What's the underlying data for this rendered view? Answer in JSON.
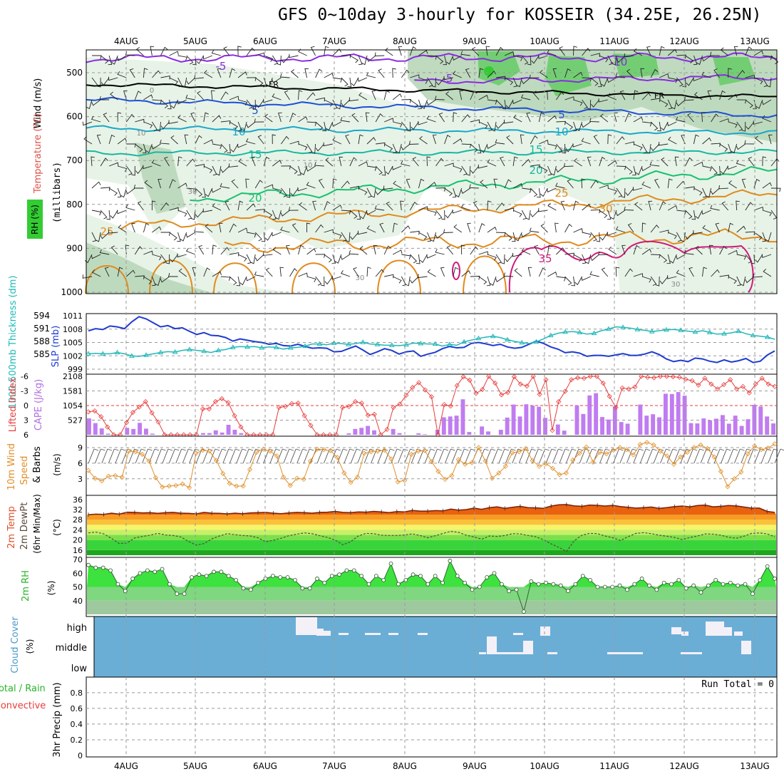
{
  "title": "GFS 0~10day 3-hourly for KOSSEIR (34.25E, 26.25N)",
  "colors": {
    "temp_contour_cold": "#8a2be2",
    "temp_contour_blue": "#1f4fd6",
    "temp_contour_cyan": "#19a8c8",
    "temp_contour_teal": "#17b8a0",
    "temp_contour_green": "#18c070",
    "temp_contour_orange": "#e08a1c",
    "temp_contour_hot": "#d0197a",
    "rh_light": "#e6f2e6",
    "rh_mid": "#bcd8bc",
    "rh_dark": "#6fce6f",
    "slp_line": "#1f3bd0",
    "thickness_line": "#20b8b8",
    "cape_bar": "#c07cf0",
    "lifted_index": "#e83c3c",
    "wind_speed": "#e0902a",
    "cloud_bg": "#6aaed6",
    "cloud_fill": "#f4f0f8",
    "rh2m_fill": "#3ee23e"
  },
  "chart_data": {
    "dates": [
      "4AUG",
      "5AUG",
      "6AUG",
      "7AUG",
      "8AUG",
      "9AUG",
      "10AUG",
      "11AUG",
      "12AUG",
      "13AUG"
    ],
    "upper_air": {
      "type": "contour",
      "ylabel": "(millibars)",
      "labels": [
        "Temperature (°C)",
        "Wind (m/s)",
        "RH (%)"
      ],
      "pressure_ticks": [
        "500",
        "600",
        "700",
        "800",
        "900",
        "1000"
      ],
      "contour_labels": [
        "-5",
        "-5",
        "-10",
        "FR",
        "FR",
        "5",
        "5",
        "10",
        "10",
        "15",
        "15",
        "20",
        "20",
        "25",
        "25",
        "30",
        "35",
        "0",
        "10",
        "10",
        "30",
        "30",
        "30",
        "30"
      ]
    },
    "slp_thickness": {
      "type": "line",
      "ylabel_left": "1000-500mb Thickness (dm)",
      "ylabel_right": "SLP (mb)",
      "thickness_ticks": [
        "594",
        "591",
        "588",
        "585"
      ],
      "slp_ticks": [
        "1011",
        "1008",
        "1005",
        "1002",
        "999"
      ],
      "slp_values": [
        1007.6,
        1008.1,
        1007.9,
        1008.7,
        1008.5,
        1008.1,
        1009.6,
        1010.8,
        1010.3,
        1009.4,
        1008.5,
        1008.8,
        1008.1,
        1008.3,
        1007.5,
        1006.8,
        1007.2,
        1006.6,
        1006.5,
        1006.1,
        1005.3,
        1005.8,
        1005.5,
        1005.2,
        1005.0,
        1004.6,
        1004.8,
        1004.3,
        1004.2,
        1004.6,
        1004.1,
        1003.7,
        1003.8,
        1003.7,
        1002.9,
        1003.0,
        1003.6,
        1004.2,
        1003.3,
        1002.3,
        1002.9,
        1003.6,
        1003.2,
        1002.4,
        1002.9,
        1003.1,
        1001.9,
        1002.4,
        1002.8,
        1003.6,
        1004.1,
        1003.8,
        1003.9,
        1004.8,
        1005.0,
        1004.7,
        1004.3,
        1004.6,
        1004.0,
        1003.7,
        1003.9,
        1004.6,
        1005.3,
        1004.8,
        1004.0,
        1003.5,
        1002.7,
        1002.9,
        1002.6,
        1001.9,
        1002.1,
        1002.1,
        1001.9,
        1002.2,
        1002.5,
        1002.1,
        1002.1,
        1002.4,
        1002.9,
        1002.3,
        1001.3,
        1000.7,
        1001.0,
        1000.7,
        1001.5,
        1001.3,
        1000.8,
        1000.5,
        1001.1,
        1000.6,
        1000.9,
        1001.4,
        1000.5,
        1000.8,
        1002.2,
        1003.1
      ],
      "thickness_values": [
        585.1,
        585.2,
        585.1,
        585.1,
        585.4,
        585.1,
        584.6,
        584.5,
        584.8,
        585.1,
        585.4,
        585.6,
        585.5,
        585.9,
        586.1,
        585.9,
        585.7,
        585.4,
        585.9,
        586.1,
        586.6,
        586.8,
        586.7,
        586.8,
        586.5,
        586.7,
        586.6,
        586.2,
        586.5,
        586.6,
        586.9,
        587.4,
        587.4,
        587.2,
        587.6,
        587.5,
        587.3,
        587.5,
        587.8,
        587.4,
        587.3,
        587.1,
        587.1,
        587.0,
        587.2,
        587.6,
        587.5,
        587.4,
        587.4,
        586.9,
        587.3,
        587.1,
        587.9,
        588.3,
        588.7,
        589.0,
        589.2,
        588.9,
        588.4,
        588.0,
        587.7,
        587.5,
        587.9,
        588.6,
        589.4,
        589.9,
        590.2,
        590.3,
        590.1,
        589.7,
        589.9,
        590.5,
        590.9,
        591.4,
        591.3,
        591.1,
        590.8,
        590.6,
        590.3,
        590.5,
        590.7,
        590.8,
        590.6,
        590.4,
        590.2,
        590.5,
        590.1,
        589.7,
        589.8,
        590.0,
        590.4,
        589.8,
        589.4,
        589.2,
        589.0,
        588.5
      ]
    },
    "cape_li": {
      "type": "bar+line",
      "ylabel_left": "Lifted Index",
      "ylabel_right": "CAPE (J/kg)",
      "li_ticks": [
        "-6",
        "-3",
        "0",
        "3",
        "6"
      ],
      "cape_ticks": [
        "2108",
        "1581",
        "1054",
        "527"
      ],
      "cape_values": [
        590,
        420,
        230,
        40,
        0,
        0,
        250,
        210,
        430,
        220,
        40,
        0,
        0,
        0,
        0,
        0,
        0,
        0,
        60,
        60,
        160,
        80,
        360,
        180,
        60,
        0,
        0,
        0,
        0,
        0,
        0,
        0,
        0,
        0,
        0,
        0,
        0,
        0,
        0,
        0,
        0,
        50,
        210,
        250,
        320,
        160,
        0,
        0,
        210,
        60,
        0,
        0,
        50,
        20,
        0,
        180,
        630,
        660,
        690,
        1280,
        100,
        0,
        300,
        120,
        0,
        180,
        620,
        1090,
        660,
        1100,
        1050,
        1010,
        610,
        0,
        370,
        150,
        0,
        1060,
        750,
        1420,
        1500,
        640,
        550,
        1020,
        460,
        400,
        0,
        1090,
        690,
        740,
        630,
        1480,
        1470,
        1540,
        1410,
        420,
        410,
        590,
        520,
        580,
        710,
        400,
        690,
        320,
        560,
        1080,
        1020,
        660,
        410
      ],
      "li_values": [
        1.3,
        1.1,
        2.3,
        4.4,
        6.0,
        6.0,
        3.5,
        1.4,
        0.3,
        -0.8,
        1.5,
        3.4,
        6.0,
        6.0,
        6.0,
        6.0,
        6.0,
        6.0,
        0.7,
        0.7,
        -0.8,
        -1.4,
        -0.6,
        2.1,
        4.4,
        6.0,
        6.0,
        6.0,
        6.0,
        6.0,
        0.4,
        0.2,
        -0.4,
        -0.5,
        2.1,
        4.1,
        6.0,
        6.0,
        6.0,
        6.0,
        0.4,
        0.2,
        -0.8,
        -0.5,
        2.0,
        1.8,
        6.0,
        4.9,
        0.4,
        -0.3,
        -2.1,
        -3.7,
        -4.7,
        -3.2,
        -1.8,
        6.0,
        -0.2,
        0.1,
        -4.1,
        -5.9,
        -5.2,
        -2.5,
        -3.3,
        -6.0,
        -4.6,
        -2.2,
        -2.7,
        -5.9,
        -4.4,
        -4.0,
        -6.0,
        -2.3,
        -5.3,
        5.1,
        -0.8,
        -2.9,
        -5.3,
        -5.7,
        -5.6,
        -6.0,
        -6.0,
        -4.6,
        -1.9,
        0.4,
        -3.6,
        -3.4,
        -3.8,
        -6.0,
        -5.8,
        -5.7,
        -6.0,
        -6.0,
        -5.9,
        -5.8,
        -5.4,
        -5.1,
        -4.2,
        -5.6,
        -4.4,
        -3.4,
        -4.3,
        -5.3,
        -3.4,
        -3.9,
        -2.6,
        -4.4,
        -5.6,
        -4.4,
        -3.9
      ]
    },
    "wind10m": {
      "type": "line",
      "ylabel": "10m Wind Speed & Barbs (m/s)",
      "ticks": [
        "9",
        "6",
        "3"
      ],
      "values": [
        4.6,
        3.1,
        2.6,
        3.5,
        3.6,
        3.3,
        8.3,
        8.2,
        7.7,
        6.4,
        3.2,
        1.4,
        1.6,
        1.7,
        2.0,
        1.3,
        7.9,
        8.5,
        8.3,
        6.5,
        4.0,
        2.1,
        1.6,
        1.6,
        4.8,
        8.1,
        8.7,
        8.3,
        7.4,
        3.3,
        1.7,
        3.1,
        2.9,
        6.4,
        8.7,
        8.6,
        8.4,
        7.1,
        4.1,
        2.3,
        3.3,
        7.9,
        8.2,
        8.3,
        8.5,
        6.8,
        2.4,
        2.7,
        7.7,
        8.3,
        8.4,
        6.3,
        4.4,
        2.9,
        3.6,
        6.7,
        5.8,
        6.1,
        9.0,
        6.4,
        3.1,
        4.1,
        5.4,
        8.0,
        8.2,
        8.8,
        6.5,
        5.4,
        5.9,
        5.0,
        3.8,
        4.1,
        6.6,
        7.9,
        9.1,
        6.2,
        8.1,
        7.8,
        8.5,
        9.0,
        8.6,
        7.6,
        9.6,
        10.0,
        9.5,
        8.3,
        7.4,
        5.8,
        7.2,
        8.1,
        9.0,
        9.5,
        8.8,
        7.2,
        4.4,
        1.5,
        3.0,
        4.3,
        7.8,
        9.3,
        8.6,
        8.9,
        9.7
      ]
    },
    "temp2m": {
      "type": "line",
      "ylabel": "2m Temp / 2m DewPt (6hr Min/Max) (°C)",
      "ticks": [
        "36",
        "32",
        "28",
        "24",
        "20",
        "16"
      ],
      "temp_values": [
        30.0,
        30.2,
        30.1,
        30.6,
        30.2,
        31.0,
        30.9,
        30.7,
        30.8,
        30.5,
        30.8,
        30.9,
        30.6,
        30.5,
        30.3,
        30.9,
        30.6,
        30.5,
        30.3,
        30.6,
        30.4,
        30.7,
        30.8,
        30.9,
        30.6,
        30.4,
        30.7,
        30.9,
        30.8,
        30.6,
        30.9,
        31.0,
        31.3,
        30.9,
        30.8,
        31.1,
        31.0,
        31.3,
        31.1,
        30.8,
        31.2,
        31.1,
        31.7,
        31.4,
        31.4,
        31.6,
        31.5,
        32.2,
        31.8,
        32.0,
        32.6,
        32.1,
        32.8,
        33.1,
        32.5,
        32.9,
        33.3,
        32.8,
        32.7,
        32.5,
        33.4,
        33.9,
        34.0,
        33.5,
        33.3,
        33.8,
        33.7,
        33.4,
        33.7,
        33.2,
        32.9,
        32.6,
        32.8,
        33.0,
        32.5,
        32.8,
        33.2,
        33.4,
        33.1,
        33.6,
        33.8,
        33.1,
        33.3,
        33.6,
        33.5,
        33.0,
        32.6,
        32.6,
        31.3,
        30.9
      ],
      "dewpt_values": [
        22.8,
        23.1,
        22.4,
        20.6,
        18.6,
        18.8,
        20.8,
        21.4,
        21.9,
        22.6,
        22.0,
        21.8,
        21.2,
        19.4,
        18.0,
        18.6,
        20.4,
        21.6,
        22.5,
        22.1,
        21.8,
        21.6,
        20.9,
        19.3,
        19.9,
        20.7,
        21.7,
        22.3,
        22.8,
        22.5,
        21.7,
        21.0,
        20.0,
        18.1,
        19.3,
        21.6,
        22.6,
        22.5,
        21.9,
        21.8,
        21.8,
        22.0,
        22.4,
        21.8,
        20.9,
        21.7,
        22.6,
        23.4,
        23.0,
        21.9,
        21.2,
        20.3,
        21.6,
        21.4,
        21.8,
        22.5,
        22.4,
        21.8,
        21.3,
        20.1,
        18.5,
        17.1,
        15.5,
        19.7,
        21.9,
        22.6,
        22.5,
        21.6,
        20.9,
        19.8,
        21.3,
        22.6,
        22.9,
        22.5,
        21.9,
        21.5,
        21.0,
        20.2,
        21.0,
        21.6,
        22.4,
        22.3,
        21.9,
        21.1,
        20.7,
        21.5,
        22.6,
        22.8,
        22.4,
        21.3
      ]
    },
    "rh2m": {
      "type": "area",
      "ylabel": "2m RH (%)",
      "ticks": [
        "70",
        "60",
        "50",
        "40"
      ],
      "values": [
        66,
        64,
        64,
        62,
        52,
        47,
        56,
        60,
        62,
        61,
        63,
        52,
        45,
        45,
        57,
        59,
        58,
        61,
        61,
        58,
        55,
        49,
        48,
        53,
        56,
        58,
        57,
        57,
        55,
        49,
        49,
        56,
        53,
        58,
        59,
        62,
        62,
        58,
        52,
        58,
        55,
        67,
        52,
        55,
        59,
        58,
        52,
        58,
        53,
        69,
        58,
        53,
        48,
        50,
        57,
        60,
        52,
        47,
        48,
        32,
        54,
        52,
        53,
        52,
        51,
        47,
        52,
        58,
        55,
        50,
        50,
        50,
        51,
        48,
        52,
        56,
        51,
        48,
        53,
        52,
        55,
        49,
        51,
        46,
        51,
        55,
        52,
        53,
        51,
        52,
        45,
        55,
        65,
        56
      ]
    },
    "cloud": {
      "type": "bar",
      "ylabel": "Cloud Cover (%)",
      "levels": [
        "high",
        "middle",
        "low"
      ]
    },
    "precip": {
      "type": "bar",
      "ylabel": "3hr Precip (mm)",
      "series_labels": [
        "Total / Rain",
        "Convective"
      ],
      "ticks": [
        "0.8",
        "0.6",
        "0.4",
        "0.2",
        "0"
      ],
      "run_total": "Run Total = 0"
    }
  }
}
